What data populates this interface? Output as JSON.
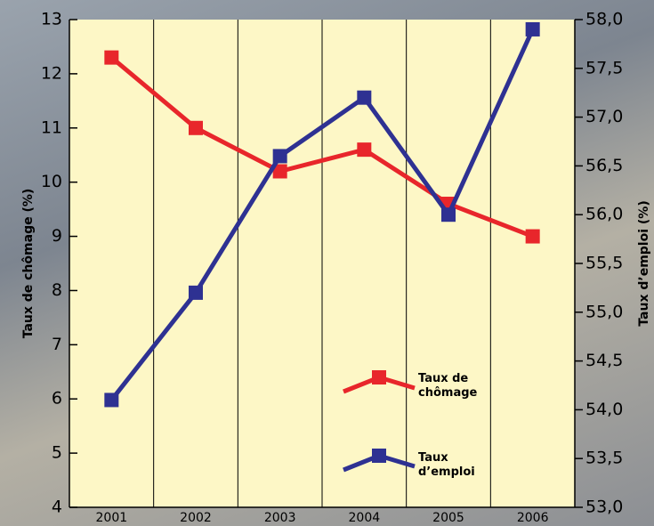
{
  "chart_data": {
    "type": "line",
    "categories": [
      "2001",
      "2002",
      "2003",
      "2004",
      "2005",
      "2006"
    ],
    "y_label": "Taux de chômage (%)",
    "y2_label": "Taux d’emploi (%)",
    "series": [
      {
        "name": "Taux de chômage",
        "color": "#e8262b",
        "values": [
          12.3,
          11.0,
          10.2,
          10.6,
          9.6,
          9.0
        ]
      },
      {
        "name": "Taux d’emploi",
        "color": "#2e3192",
        "axis": "y2",
        "values": [
          54.1,
          55.2,
          56.6,
          57.2,
          56.0,
          57.9
        ]
      }
    ],
    "ylim": [
      4,
      13
    ],
    "yticks": [
      4,
      5,
      6,
      7,
      8,
      9,
      10,
      11,
      12,
      13
    ],
    "y2lim": [
      53,
      58
    ],
    "y2ticks": [
      {
        "value": 53,
        "label": "53,0"
      },
      {
        "value": 53.5,
        "label": "53,5"
      },
      {
        "value": 54,
        "label": "54,0"
      },
      {
        "value": 54.5,
        "label": "54,5"
      },
      {
        "value": 55,
        "label": "55,0"
      },
      {
        "value": 55.5,
        "label": "55,5"
      },
      {
        "value": 56,
        "label": "56,0"
      },
      {
        "value": 56.5,
        "label": "56,5"
      },
      {
        "value": 57,
        "label": "57,0"
      },
      {
        "value": 57.5,
        "label": "57,5"
      },
      {
        "value": 58,
        "label": "58,0"
      }
    ],
    "grid": "x"
  }
}
